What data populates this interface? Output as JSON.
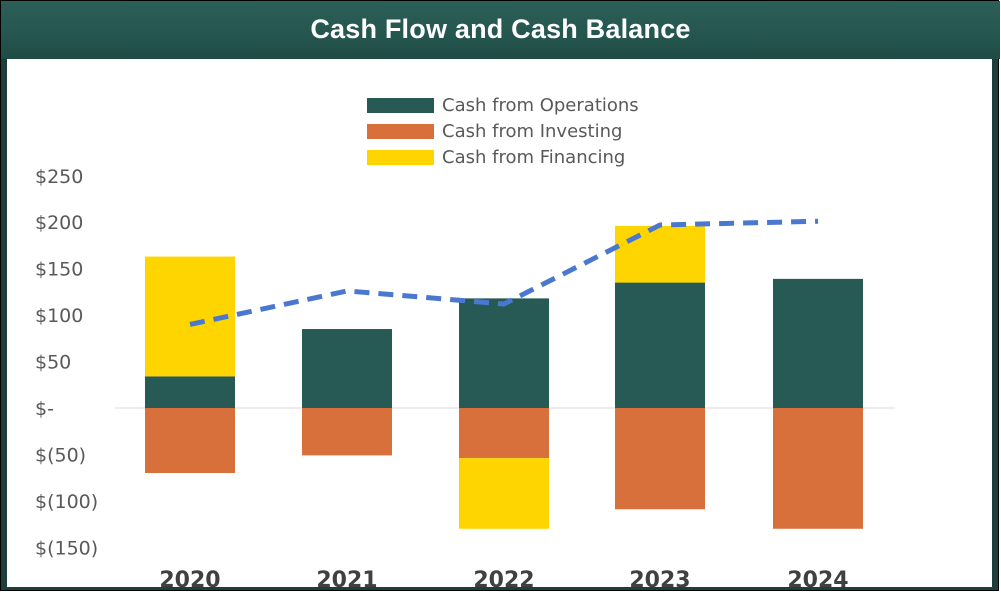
{
  "title": "Cash Flow and Cash Balance",
  "colors": {
    "operations": "#275a55",
    "investing": "#d8703b",
    "financing": "#ffd500",
    "balance_line": "#4a78d1",
    "title_bar": "#255750",
    "axis_text": "#595959",
    "year_text": "#404040",
    "zero_line": "#d9d9d9"
  },
  "chart_data": {
    "type": "bar",
    "stacked": true,
    "title": "Cash Flow and Cash Balance",
    "xlabel": "",
    "ylabel": "",
    "categories": [
      "2020",
      "2021",
      "2022",
      "2023",
      "2024"
    ],
    "ylim": [
      -150,
      250
    ],
    "y_ticks": [
      250,
      200,
      150,
      100,
      50,
      0,
      -50,
      -100,
      -150
    ],
    "y_tick_labels": [
      "$250",
      "$200",
      "$150",
      "$100",
      "$50",
      "$-",
      "$(50)",
      "$(100)",
      "$(150)"
    ],
    "legend_position": "top",
    "grid": false,
    "series": [
      {
        "name": "Cash from Operations",
        "color_key": "operations",
        "values": [
          34,
          85,
          118,
          135,
          139
        ]
      },
      {
        "name": "Cash from Investing",
        "color_key": "investing",
        "values": [
          -70,
          -51,
          -54,
          -109,
          -130
        ]
      },
      {
        "name": "Cash from Financing",
        "color_key": "financing",
        "values": [
          129,
          0,
          -76,
          61,
          0
        ]
      }
    ],
    "line_series": {
      "type": "line",
      "style": "dashed",
      "color_key": "balance_line",
      "values": [
        90,
        126,
        112,
        197,
        201
      ]
    }
  }
}
